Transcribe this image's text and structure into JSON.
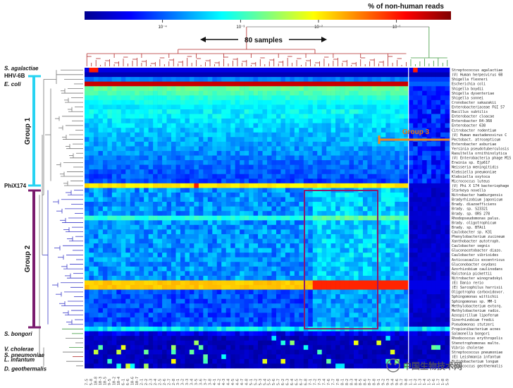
{
  "chart_data": {
    "type": "heatmap",
    "colorbar_label": "% of non-human reads",
    "colorbar_scale": "log",
    "colorbar_range": [
      1e-05,
      0.5
    ],
    "colorbar_ticks": [
      {
        "value": 0.0001,
        "label": "10⁻⁴"
      },
      {
        "value": 0.001,
        "label": "10⁻³"
      },
      {
        "value": 0.01,
        "label": "10⁻²"
      },
      {
        "value": 0.1,
        "label": "10⁻¹"
      }
    ],
    "column_annotation": "80 samples",
    "rows": [
      "Streptococcus agalactiae",
      "(V) Human herpesvirus 6B",
      "Shigella flexneri",
      "Escherichia coli",
      "Shigella boydii",
      "Shigella dysenteriae",
      "Shigella sonnei",
      "Cronobacter sakazakii",
      "Enterobacteriaceae FGI 57",
      "Bacillus subtilis",
      "Enterobacter cloacae",
      "Enterobacter R4-368",
      "Enterobacter 638",
      "Citrobacter rodentium",
      "(V) Human mastadenovirus C",
      "Pectobact. atrosepticum",
      "Enterobacter asburiae",
      "Yersinia pseudotuberculosis",
      "Raoultella ornithinolytica",
      "(V) Enterobacteria phage M1S",
      "Erwinia sp. Ejp617",
      "Neisseria meningitidis",
      "Klebsiella pneumoniae",
      "Klebsiella oxytoca",
      "Micrococcus luteus",
      "(V) Phi X 174 bacteriophage",
      "Starkeya novella",
      "Nitrobacter hamburgensis",
      "Bradyrhizobium japonicum",
      "Brady. diazoefficiens",
      "Brady. sp. S23321",
      "Brady. sp. ORS 278",
      "Rhodopseudomonas palus.",
      "Brady. oligotrophicum",
      "Brady. sp. BTAi1",
      "Caulobacter sp. K31",
      "Phenylobacterium zucineum",
      "Xanthobacter autotroph.",
      "Caulobacter segnis",
      "Gluconacetobacter diazo.",
      "Caulobacter vibrioides",
      "Asticcacaulis excentricus",
      "Gluconobacter oxydans",
      "Azorhizobium caulinodans",
      "Ralstonia pickettii",
      "Nitrobacter winogradskyi",
      "(E) Danio rerio",
      "(E) Sarcophilus harrisii",
      "Oligotropha carboxidovor.",
      "Sphingomonas wittichii",
      "Sphingomonas sp. MM-1",
      "Methylobacterium extorq.",
      "Methylobacterium radio.",
      "Azospirillum lipoferum",
      "Sinorhizobium fredii",
      "Pseudomonas stutzeri",
      "Propionibacterium acnes",
      "Salmonella bongori",
      "Rhodococcus erythropolis",
      "Stenotrophomonas malto.",
      "Vibrio cholerae",
      "Streptococcus pneumoniae",
      "(E) Leishmania infantum",
      "Bifidobacterium longum",
      "Deinococcus geothermalis"
    ],
    "columns": [
      "7-5",
      "5-8",
      "10-8",
      "10-3",
      "10-5",
      "9-5",
      "10-2",
      "10-4",
      "6-1",
      "6-6",
      "10-6",
      "10-7",
      "2-1",
      "2-2",
      "2-3",
      "2-4",
      "2-5",
      "2-6",
      "2-7",
      "2-8",
      "3-1",
      "3-2",
      "3-3",
      "3-4",
      "3-5",
      "3-6",
      "3-7",
      "3-8",
      "4-1",
      "4-2",
      "4-3",
      "4-4",
      "4-5",
      "4-6",
      "4-7",
      "4-8",
      "5-1",
      "5-2",
      "5-3",
      "5-4",
      "5-5",
      "5-6",
      "5-7",
      "6-2",
      "6-3",
      "6-4",
      "6-5",
      "6-7",
      "6-8",
      "7-1",
      "7-2",
      "7-3",
      "7-4",
      "7-6",
      "7-7",
      "7-8",
      "8-1",
      "8-2",
      "8-3",
      "8-4",
      "8-5",
      "8-6",
      "8-7",
      "8-8",
      "9-1",
      "9-2",
      "9-3",
      "9-4",
      "9-6",
      "9-7",
      "9-8",
      "1-1",
      "1-2",
      "1-3",
      "1-4",
      "1-5",
      "1-6",
      "1-7",
      "1-8",
      "5-9"
    ],
    "groups": [
      {
        "label": "Group 1"
      },
      {
        "label": "Group 2"
      },
      {
        "label": "Group 3"
      }
    ],
    "row_callouts": [
      {
        "label": "S. agalactiae",
        "row": 0,
        "italic": true
      },
      {
        "label": "HHV-6B",
        "row": 1,
        "italic": false
      },
      {
        "label": "E. coli",
        "row": 3,
        "italic": true
      },
      {
        "label": "PhiX174",
        "row": 25,
        "italic": false
      },
      {
        "label": "S. bongori",
        "row": 57,
        "italic": true
      },
      {
        "label": "V. cholerae",
        "row": 60,
        "italic": true
      },
      {
        "label": "S. pneumoniae",
        "row": 61,
        "italic": true
      },
      {
        "label": "L. infantum",
        "row": 62,
        "italic": true
      },
      {
        "label": "D. geothermalis",
        "row": 64,
        "italic": true
      }
    ],
    "colors": {
      "low": "#0b0f8c",
      "group1_bar": "#27d3f2",
      "group2_bar": "#7a1b6e",
      "group3_bar": "#f08a1c",
      "highlight_box": "#8a1a6e",
      "dendro_red": "#b22a2a",
      "dendro_green": "#3e9a3e",
      "dendro_blue": "#3a3ac8",
      "dendro_gray": "#777777"
    }
  },
  "watermark": "中国生物技术网"
}
